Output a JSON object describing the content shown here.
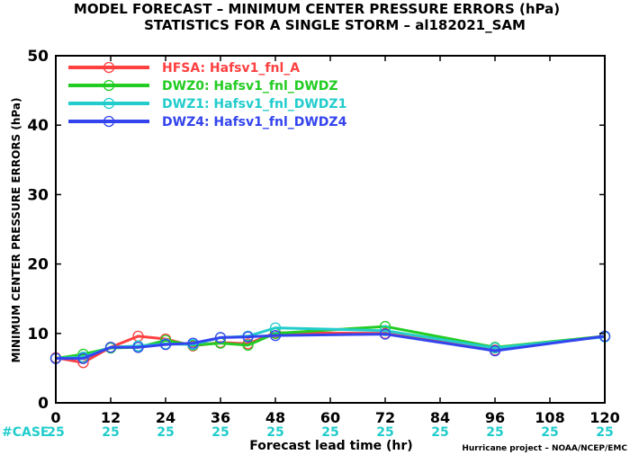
{
  "chart_data": {
    "type": "line",
    "title": "MODEL FORECAST – MINIMUM CENTER PRESSURE ERRORS (hPa)",
    "subtitle": "STATISTICS FOR A SINGLE STORM – al182021_SAM",
    "xlabel": "Forecast lead time (hr)",
    "ylabel": "MINIMUM CENTER PRESSURE ERRORS (hPa)",
    "xlim": [
      0,
      120
    ],
    "ylim": [
      0,
      50
    ],
    "xticks": [
      0,
      12,
      24,
      36,
      48,
      60,
      72,
      84,
      96,
      108,
      120
    ],
    "yticks": [
      0,
      10,
      20,
      30,
      40,
      50
    ],
    "legend_position": "top-left",
    "case_label": "#CASE",
    "case_ticks": [
      0,
      12,
      24,
      36,
      48,
      60,
      72,
      84,
      96,
      108,
      120
    ],
    "case_counts": [
      "25",
      "25",
      "25",
      "25",
      "25",
      "25",
      "25",
      "25",
      "25",
      "25",
      "25"
    ],
    "credit": "Hurricane project – NOAA/NCEP/EMC",
    "series": [
      {
        "name": "HFSA: Hafsv1_fnl_A",
        "color": "#ff4040",
        "x": [
          0,
          6,
          12,
          18,
          24,
          30,
          36,
          42,
          48,
          72,
          96,
          120
        ],
        "y": [
          6.5,
          5.8,
          8.0,
          9.6,
          9.2,
          8.2,
          8.7,
          8.5,
          10.1,
          10.0,
          7.6,
          9.6
        ]
      },
      {
        "name": "DWZ0: Hafsv1_fnl_DWDZ",
        "color": "#22cc22",
        "x": [
          0,
          6,
          12,
          18,
          24,
          30,
          36,
          42,
          48,
          72,
          96,
          120
        ],
        "y": [
          6.4,
          7.0,
          7.9,
          8.0,
          9.0,
          8.3,
          8.6,
          8.3,
          10.0,
          11.0,
          8.0,
          9.6
        ]
      },
      {
        "name": "DWZ1: Hafsv1_fnl_DWDZ1",
        "color": "#22cccc",
        "x": [
          0,
          6,
          12,
          18,
          24,
          30,
          36,
          42,
          48,
          72,
          96,
          120
        ],
        "y": [
          6.4,
          6.6,
          8.0,
          8.2,
          8.5,
          8.4,
          9.4,
          9.6,
          10.8,
          10.4,
          7.9,
          9.5
        ]
      },
      {
        "name": "DWZ4: Hafsv1_fnl_DWDZ4",
        "color": "#3344ee",
        "x": [
          0,
          6,
          12,
          18,
          24,
          30,
          36,
          42,
          48,
          72,
          96,
          120
        ],
        "y": [
          6.4,
          6.4,
          8.0,
          8.0,
          8.4,
          8.6,
          9.4,
          9.5,
          9.7,
          9.9,
          7.5,
          9.6
        ]
      }
    ]
  }
}
